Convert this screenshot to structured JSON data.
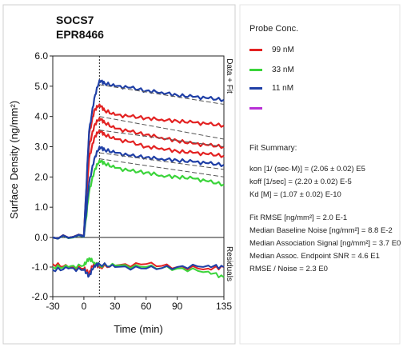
{
  "chart_data": {
    "type": "line",
    "title": "SOCS7",
    "subtitle": "EPR8466",
    "xlabel": "Time (min)",
    "ylabel": "Surface Density (ng/mm²)",
    "right_label_top": "Data + Fit",
    "right_label_bottom": "Residuals",
    "xlim": [
      -30,
      135
    ],
    "ylim_main": [
      0,
      6
    ],
    "ylim_residual": [
      -2,
      0
    ],
    "x_ticks": [
      "-30",
      "0",
      "30",
      "60",
      "90",
      "135"
    ],
    "x_tick_values": [
      -30,
      0,
      30,
      60,
      90,
      135
    ],
    "y_ticks_main": [
      "0.0",
      "1.0",
      "2.0",
      "3.0",
      "4.0",
      "5.0",
      "6.0"
    ],
    "y_tick_values_main": [
      0,
      1,
      2,
      3,
      4,
      5,
      6
    ],
    "y_ticks_residual": [
      "-1.0",
      "-2.0"
    ],
    "y_tick_values_residual": [
      -1,
      -2
    ],
    "injection_end_x": 15,
    "series": [
      {
        "name": "99 nM",
        "color": "#e32222",
        "curves": [
          {
            "x": [
              -30,
              0,
              5,
              10,
              15,
              20,
              30,
              45,
              60,
              75,
              90,
              105,
              120,
              135
            ],
            "y": [
              0,
              0.05,
              3.4,
              4.2,
              4.4,
              4.2,
              4.05,
              4.0,
              3.95,
              3.9,
              3.85,
              3.8,
              3.75,
              3.7
            ]
          },
          {
            "x": [
              -30,
              0,
              5,
              10,
              15,
              20,
              30,
              45,
              60,
              75,
              90,
              105,
              120,
              135
            ],
            "y": [
              0,
              0.05,
              3.0,
              3.7,
              3.95,
              3.8,
              3.6,
              3.5,
              3.4,
              3.3,
              3.2,
              3.1,
              3.05,
              3.0
            ]
          },
          {
            "x": [
              -30,
              0,
              5,
              10,
              15,
              20,
              30,
              45,
              60,
              75,
              90,
              105,
              120,
              135
            ],
            "y": [
              0,
              0.05,
              2.6,
              3.3,
              3.55,
              3.4,
              3.25,
              3.15,
              3.0,
              2.95,
              2.85,
              2.8,
              2.75,
              2.7
            ]
          }
        ]
      },
      {
        "name": "33 nM",
        "color": "#3bd43b",
        "curves": [
          {
            "x": [
              -30,
              0,
              5,
              10,
              15,
              20,
              30,
              45,
              60,
              75,
              90,
              105,
              120,
              135
            ],
            "y": [
              0,
              0.02,
              1.5,
              2.2,
              2.55,
              2.45,
              2.3,
              2.2,
              2.15,
              2.05,
              2.0,
              1.95,
              1.85,
              1.75
            ]
          }
        ]
      },
      {
        "name": "11 nM",
        "color": "#1f3fa6",
        "curves": [
          {
            "x": [
              -30,
              0,
              5,
              10,
              15,
              20,
              30,
              45,
              60,
              75,
              90,
              105,
              120,
              135
            ],
            "y": [
              0,
              0.05,
              3.5,
              4.6,
              5.2,
              5.1,
              5.0,
              4.95,
              4.85,
              4.8,
              4.7,
              4.65,
              4.6,
              4.55
            ]
          },
          {
            "x": [
              -30,
              0,
              5,
              10,
              15,
              20,
              30,
              45,
              60,
              75,
              90,
              105,
              120,
              135
            ],
            "y": [
              0,
              0.03,
              1.8,
              2.6,
              3.0,
              2.9,
              2.8,
              2.7,
              2.65,
              2.6,
              2.55,
              2.5,
              2.45,
              2.4
            ]
          }
        ]
      },
      {
        "name": "",
        "color": "#b82fd6",
        "curves": []
      }
    ],
    "fits": [
      {
        "x": [
          15,
          135
        ],
        "y": [
          5.05,
          4.4
        ]
      },
      {
        "x": [
          15,
          135
        ],
        "y": [
          4.0,
          3.25
        ]
      },
      {
        "x": [
          15,
          135
        ],
        "y": [
          3.55,
          3.0
        ]
      },
      {
        "x": [
          15,
          135
        ],
        "y": [
          2.8,
          2.25
        ]
      },
      {
        "x": [
          15,
          135
        ],
        "y": [
          2.6,
          2.0
        ]
      }
    ],
    "residuals": [
      {
        "color": "#e32222",
        "x": [
          -30,
          -15,
          0,
          5,
          10,
          15,
          30,
          60,
          90,
          120,
          135
        ],
        "y": [
          -0.9,
          -1.0,
          -1.05,
          -1.2,
          -0.85,
          -1.0,
          -0.95,
          -0.9,
          -1.0,
          -1.05,
          -1.0
        ]
      },
      {
        "color": "#3bd43b",
        "x": [
          -30,
          -15,
          0,
          5,
          10,
          15,
          30,
          60,
          90,
          120,
          135
        ],
        "y": [
          -1.0,
          -1.0,
          -0.95,
          -0.7,
          -0.85,
          -0.95,
          -0.95,
          -1.0,
          -1.05,
          -1.15,
          -1.35
        ]
      },
      {
        "color": "#1f3fa6",
        "x": [
          -30,
          -15,
          0,
          5,
          10,
          15,
          30,
          60,
          90,
          120,
          135
        ],
        "y": [
          -1.1,
          -1.05,
          -1.1,
          -1.3,
          -0.95,
          -0.9,
          -1.0,
          -1.05,
          -1.0,
          -0.95,
          -1.0
        ]
      }
    ]
  },
  "legend": {
    "title": "Probe Conc.",
    "items": [
      {
        "label": "99 nM",
        "color": "#e32222"
      },
      {
        "label": "33 nM",
        "color": "#3bd43b"
      },
      {
        "label": "11 nM",
        "color": "#1f3fa6"
      },
      {
        "label": "",
        "color": "#b82fd6"
      }
    ]
  },
  "fit_summary": {
    "title": "Fit Summary:",
    "kon": "kon  [1/ (sec·M)]  =  (2.06 ± 0.02) E5",
    "koff": "koff  [1/sec]  =  (2.20 ± 0.02) E-5",
    "kd": "Kd  [M]  =  (1.07 ± 0.02) E-10",
    "rmse": "Fit RMSE [ng/mm²]  =  2.0 E-1",
    "baseline_noise": "Median Baseline Noise [ng/mm²]  =  8.8 E-2",
    "association_signal": "Median Association Signal [ng/mm²]  =  3.7 E0",
    "endpoint_snr": "Median Assoc. Endpoint SNR  =  4.6 E1",
    "rmse_noise": "RMSE / Noise  =  2.3 E0"
  }
}
